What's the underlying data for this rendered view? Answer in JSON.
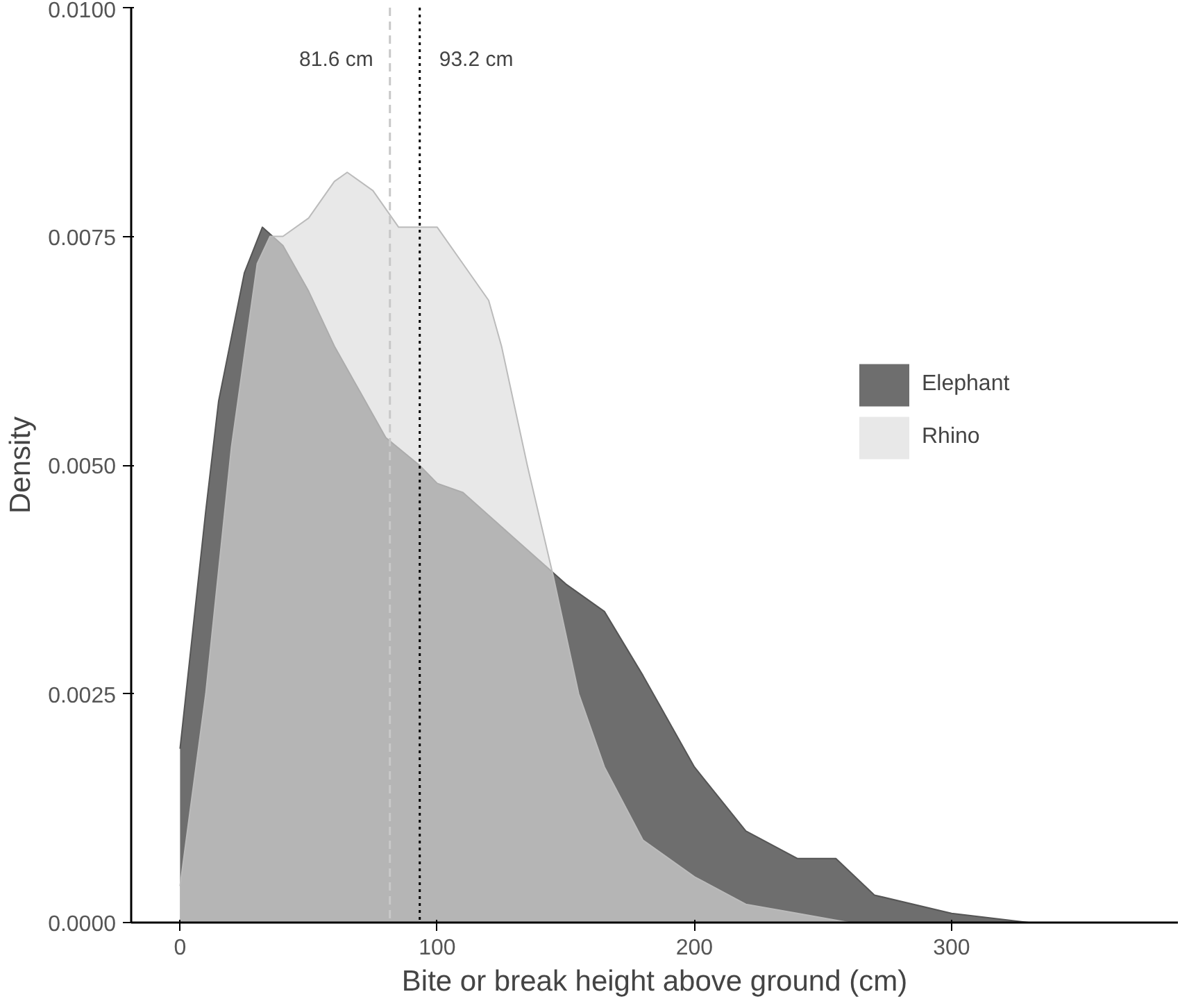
{
  "chart_data": {
    "type": "area",
    "xlabel": "Bite or break height above ground (cm)",
    "ylabel": "Density",
    "xlim": [
      -19,
      388
    ],
    "ylim": [
      0,
      0.01
    ],
    "xticks": [
      0,
      100,
      200,
      300
    ],
    "yticks": [
      {
        "value": 0,
        "label": "0.0000"
      },
      {
        "value": 0.0025,
        "label": "0.0025"
      },
      {
        "value": 0.005,
        "label": "0.0050"
      },
      {
        "value": 0.0075,
        "label": "0.0075"
      },
      {
        "value": 0.01,
        "label": "0.0100"
      }
    ],
    "grid": false,
    "legend": "right",
    "series": [
      {
        "name": "Elephant",
        "color": "#6e6e6e",
        "x": [
          0,
          5,
          10,
          15,
          20,
          25,
          32,
          40,
          50,
          60,
          70,
          80,
          93,
          100,
          110,
          130,
          150,
          165,
          180,
          200,
          220,
          240,
          255,
          270,
          300,
          330,
          355
        ],
        "values": [
          0.0019,
          0.0032,
          0.0045,
          0.0057,
          0.0064,
          0.0071,
          0.0076,
          0.0074,
          0.0069,
          0.0063,
          0.0058,
          0.0053,
          0.005,
          0.0048,
          0.0047,
          0.0042,
          0.0037,
          0.0034,
          0.0027,
          0.0017,
          0.001,
          0.0007,
          0.0007,
          0.0003,
          0.0001,
          0,
          0
        ]
      },
      {
        "name": "Rhino",
        "color": "#dcdcdc",
        "x": [
          0,
          10,
          20,
          30,
          35,
          40,
          50,
          60,
          65,
          75,
          85,
          95,
          100,
          110,
          120,
          125,
          135,
          145,
          155,
          165,
          180,
          200,
          220,
          240,
          260
        ],
        "values": [
          0.0004,
          0.0025,
          0.0052,
          0.0072,
          0.0075,
          0.0075,
          0.0077,
          0.0081,
          0.0082,
          0.008,
          0.0076,
          0.0076,
          0.0076,
          0.0072,
          0.0068,
          0.0063,
          0.005,
          0.0038,
          0.0025,
          0.0017,
          0.0009,
          0.0005,
          0.0002,
          0.0001,
          0
        ]
      }
    ],
    "ref_lines": [
      {
        "axis": "x",
        "value": 81.6,
        "label": "81.6 cm",
        "color": "#c8c8c8",
        "line_style": "dashed"
      },
      {
        "axis": "x",
        "value": 93.2,
        "label": "93.2 cm",
        "color": "#000000",
        "line_style": "dotted"
      }
    ]
  }
}
